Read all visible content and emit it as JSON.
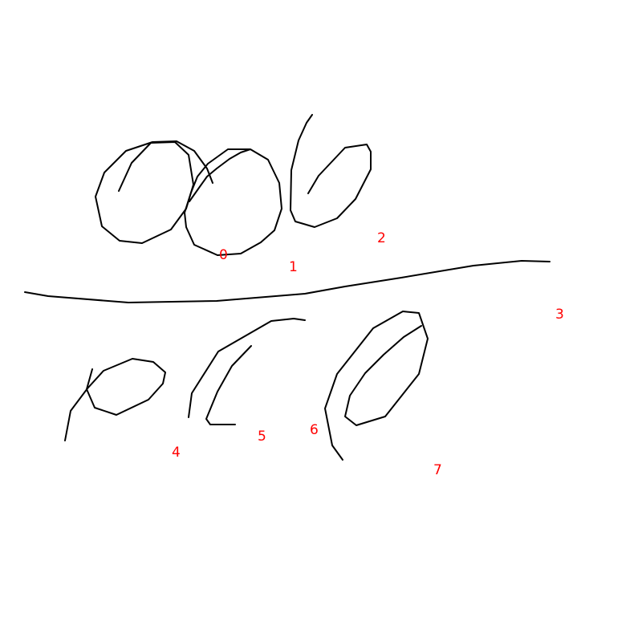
{
  "colors": {
    "stroke": "#000000",
    "label": "#ff0000",
    "background": "#ffffff"
  },
  "labels": [
    "0",
    "1",
    "2",
    "3",
    "4",
    "5",
    "6",
    "7"
  ]
}
